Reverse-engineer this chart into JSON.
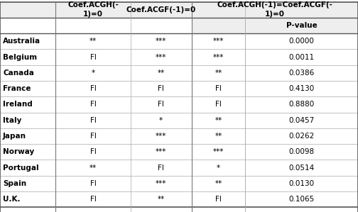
{
  "countries": [
    "Australia",
    "Belgium",
    "Canada",
    "France",
    "Ireland",
    "Italy",
    "Japan",
    "Norway",
    "Portugal",
    "Spain",
    "U.K."
  ],
  "col1": [
    "**",
    "FI",
    "*",
    "FI",
    "FI",
    "FI",
    "FI",
    "FI",
    "**",
    "FI",
    "FI"
  ],
  "col2": [
    "***",
    "***",
    "**",
    "FI",
    "FI",
    "*",
    "***",
    "***",
    "FI",
    "***",
    "**"
  ],
  "col3": [
    "***",
    "***",
    "**",
    "FI",
    "FI",
    "**",
    "**",
    "***",
    "*",
    "**",
    "FI"
  ],
  "col4": [
    "0.0000",
    "0.0011",
    "0.0386",
    "0.4130",
    "0.8880",
    "0.0457",
    "0.0262",
    "0.0098",
    "0.0514",
    "0.0130",
    "0.1065"
  ],
  "header1": "Coef.ACGH(-\n1)=0",
  "header2": "Coef.ACGF(-1)=0",
  "header3": "Coef.ACGH(-1)=Coef.ACGF(-\n1)=0",
  "subheader3": "P-value",
  "bg_color": "#ffffff",
  "header_bg": "#eeeeee",
  "line_color": "#999999",
  "country_font_size": 7.5,
  "data_font_size": 7.5,
  "header_font_size": 7.5
}
